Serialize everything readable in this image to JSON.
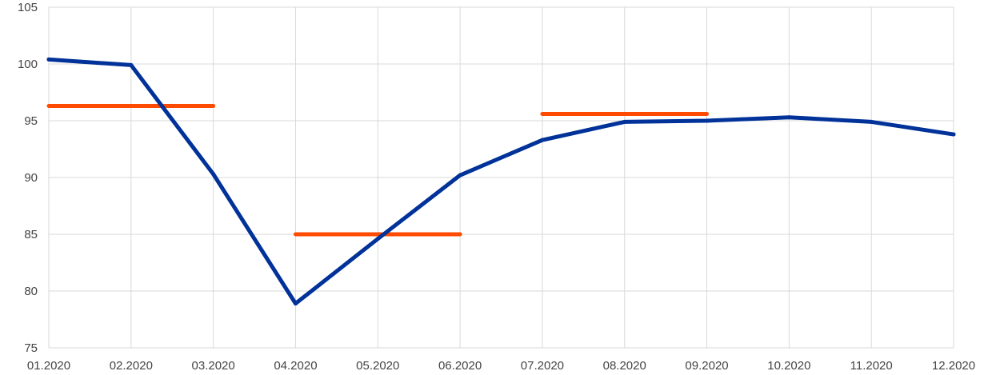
{
  "chart_data": {
    "type": "line",
    "categories": [
      "01.2020",
      "02.2020",
      "03.2020",
      "04.2020",
      "05.2020",
      "06.2020",
      "07.2020",
      "08.2020",
      "09.2020",
      "10.2020",
      "11.2020",
      "12.2020"
    ],
    "series": [
      {
        "color": "#003299",
        "values": [
          100.4,
          99.9,
          90.3,
          78.9,
          84.6,
          90.2,
          93.3,
          94.9,
          95.0,
          95.3,
          94.9,
          93.8
        ]
      }
    ],
    "segments": [
      {
        "from": "01.2020",
        "to": "03.2020",
        "value": 96.3,
        "color": "#ff4b00"
      },
      {
        "from": "04.2020",
        "to": "06.2020",
        "value": 85.0,
        "color": "#ff4b00"
      },
      {
        "from": "07.2020",
        "to": "09.2020",
        "value": 95.6,
        "color": "#ff4b00"
      }
    ],
    "yticks": [
      "75",
      "80",
      "85",
      "90",
      "95",
      "100",
      "105"
    ],
    "ylim": [
      75,
      105
    ],
    "grid": true,
    "title": "",
    "xlabel": "",
    "ylabel": ""
  }
}
